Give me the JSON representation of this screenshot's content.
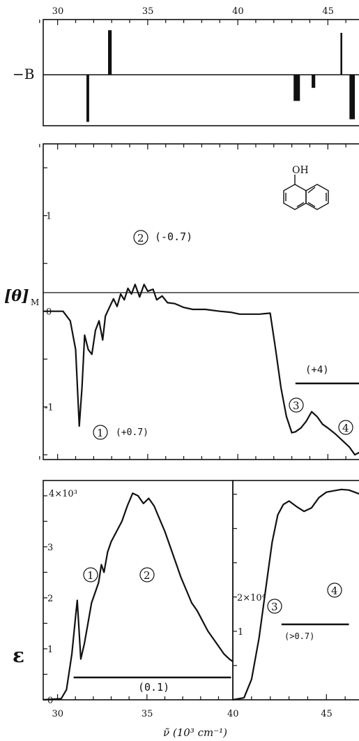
{
  "chart_data": [
    {
      "type": "bar",
      "panel": "rotational-strength",
      "ylabel": "−B",
      "x_ticks": [
        "30",
        "35",
        "40",
        "45"
      ],
      "xlim": [
        29.2,
        47.0
      ],
      "bars": [
        {
          "x_start": 31.6,
          "x_end": 31.75,
          "sign": "negative",
          "value": -0.9
        },
        {
          "x_start": 32.8,
          "x_end": 33.0,
          "sign": "positive",
          "value": 0.85
        },
        {
          "x_start": 43.1,
          "x_end": 43.45,
          "sign": "negative",
          "value": -0.5
        },
        {
          "x_start": 44.1,
          "x_end": 44.3,
          "sign": "negative",
          "value": -0.25
        },
        {
          "x_start": 45.7,
          "x_end": 45.8,
          "sign": "positive",
          "value": 0.8
        },
        {
          "x_start": 46.2,
          "x_end": 46.5,
          "sign": "negative",
          "value": -0.85
        }
      ]
    },
    {
      "type": "line",
      "panel": "cd-spectrum",
      "ylabel": "[θ]",
      "ylabel_sub": "M",
      "y_ticks": [
        "1",
        "0",
        "-1"
      ],
      "xlim": [
        29.2,
        47.0
      ],
      "ylim": [
        -1.55,
        1.75
      ],
      "molecule_label": "OH",
      "series": [
        {
          "x": [
            29.2,
            30.3,
            30.7,
            31.0,
            31.2,
            31.35,
            31.5,
            31.7,
            31.9,
            32.1,
            32.3,
            32.5,
            32.65,
            32.9,
            33.1,
            33.3,
            33.5,
            33.7,
            33.9,
            34.1,
            34.3,
            34.55,
            34.8,
            35.0,
            35.3,
            35.5,
            35.8,
            36.1,
            36.5,
            37.0,
            37.5,
            38.2,
            39.0,
            39.6,
            40.1,
            40.6,
            41.2,
            41.8,
            42.1,
            42.4,
            42.7,
            43.0,
            43.2,
            43.5,
            43.8,
            44.1,
            44.4,
            44.7,
            45.0,
            45.4,
            45.8,
            46.2,
            46.5,
            46.8,
            47.0
          ],
          "y": [
            0.0,
            0.0,
            -0.1,
            -0.4,
            -1.2,
            -0.8,
            -0.25,
            -0.4,
            -0.45,
            -0.2,
            -0.1,
            -0.3,
            -0.05,
            0.05,
            0.13,
            0.05,
            0.18,
            0.12,
            0.24,
            0.18,
            0.28,
            0.15,
            0.28,
            0.21,
            0.23,
            0.12,
            0.16,
            0.09,
            0.08,
            0.04,
            0.02,
            0.02,
            0.0,
            -0.01,
            -0.03,
            -0.03,
            -0.03,
            -0.02,
            -0.4,
            -0.8,
            -1.1,
            -1.27,
            -1.26,
            -1.22,
            -1.15,
            -1.05,
            -1.1,
            -1.18,
            -1.22,
            -1.28,
            -1.35,
            -1.42,
            -1.5,
            -1.47,
            -1.42
          ]
        }
      ],
      "annotations": [
        {
          "band": "1",
          "value": "(+0.7)"
        },
        {
          "band": "2",
          "value": "(-0.7)"
        },
        {
          "band": "3",
          "value": ""
        },
        {
          "band": "4",
          "value": ""
        },
        {
          "band": "3-4",
          "value": "(+4)",
          "x_start": 43.2,
          "x_end": 46.8
        }
      ]
    },
    {
      "type": "line",
      "panel": "absorption-left",
      "ylabel": "ε",
      "y_ticks": [
        "0",
        "1",
        "2",
        "3"
      ],
      "y_scale_label": "4×10³",
      "xlim": [
        29.2,
        39.8
      ],
      "ylim": [
        0,
        4.3
      ],
      "series": [
        {
          "x": [
            29.2,
            30.2,
            30.5,
            30.8,
            31.0,
            31.1,
            31.3,
            31.5,
            31.7,
            31.9,
            32.1,
            32.3,
            32.45,
            32.6,
            32.8,
            33.0,
            33.3,
            33.6,
            33.9,
            34.2,
            34.5,
            34.8,
            35.1,
            35.4,
            35.7,
            36.0,
            36.3,
            36.6,
            36.9,
            37.2,
            37.5,
            37.8,
            38.1,
            38.4,
            38.7,
            39.0,
            39.3,
            39.6,
            39.8
          ],
          "y": [
            0.0,
            0.02,
            0.2,
            0.9,
            1.6,
            1.95,
            0.8,
            1.1,
            1.5,
            1.9,
            2.1,
            2.3,
            2.65,
            2.5,
            2.9,
            3.1,
            3.3,
            3.5,
            3.8,
            4.05,
            4.0,
            3.85,
            3.95,
            3.8,
            3.55,
            3.3,
            3.0,
            2.7,
            2.4,
            2.15,
            1.9,
            1.75,
            1.55,
            1.35,
            1.2,
            1.05,
            0.9,
            0.8,
            0.75
          ]
        }
      ],
      "annotations": [
        {
          "band": "1"
        },
        {
          "band": "2"
        },
        {
          "range": "(0.1)",
          "x_start": 30.9,
          "x_end": 39.7
        }
      ]
    },
    {
      "type": "line",
      "panel": "absorption-right",
      "y_ticks": [
        "1"
      ],
      "y_scale_label": "2×10⁴",
      "xlim": [
        40.0,
        47.0
      ],
      "ylim": [
        0,
        3.2
      ],
      "series": [
        {
          "x": [
            40.0,
            40.6,
            41.0,
            41.4,
            41.8,
            42.1,
            42.4,
            42.7,
            43.0,
            43.4,
            43.8,
            44.2,
            44.6,
            45.0,
            45.4,
            45.8,
            46.2,
            46.6,
            47.0
          ],
          "y": [
            0.0,
            0.03,
            0.3,
            0.9,
            1.7,
            2.3,
            2.7,
            2.85,
            2.9,
            2.82,
            2.75,
            2.8,
            2.95,
            3.03,
            3.05,
            3.07,
            3.06,
            3.02,
            2.98
          ]
        }
      ],
      "annotations": [
        {
          "band": "3"
        },
        {
          "band": "4"
        },
        {
          "range": "(>0.7)",
          "x_start": 42.6,
          "x_end": 46.2
        }
      ]
    }
  ],
  "x_ticks_bottom": [
    "30",
    "35",
    "40",
    "45"
  ],
  "x_ticks_bottom_values": [
    30,
    35,
    40,
    45
  ],
  "x_axis_label": "ν̃ (10³ cm⁻¹)"
}
